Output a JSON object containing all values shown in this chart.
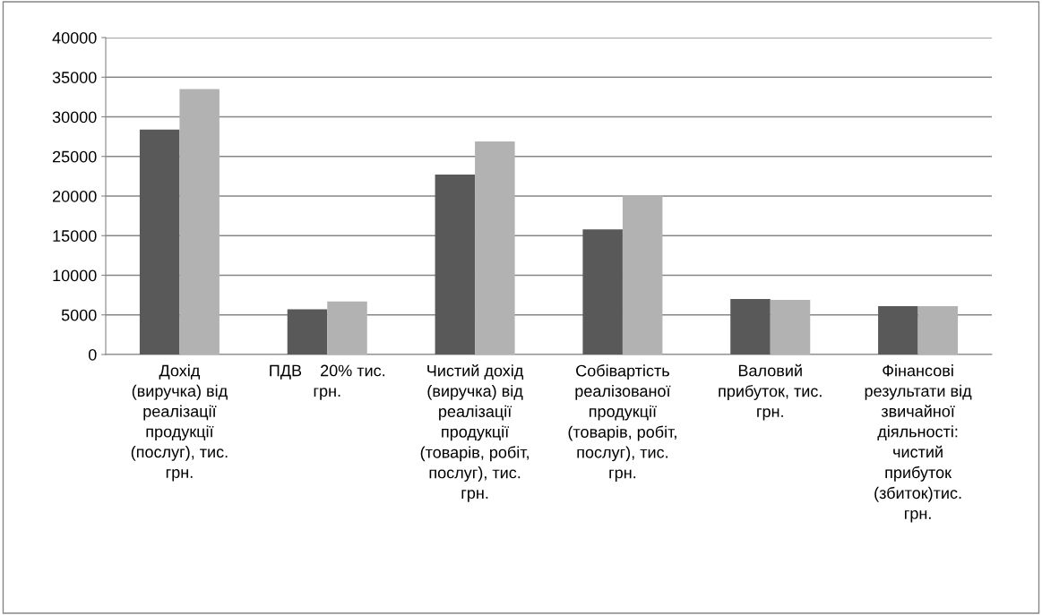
{
  "chart_data": {
    "type": "bar",
    "categories": [
      "Дохід\n(виручка) від\nреалізації\nпродукції\n(послуг), тис.\nгрн.",
      "ПДВ    20% тис.\nгрн.",
      "Чистий дохід\n(виручка) від\nреалізації\nпродукції\n(товарів, робіт,\nпослуг), тис.\nгрн.",
      "Собівартість\nреалізованої\nпродукції\n(товарів, робіт,\nпослуг), тис.\nгрн.",
      "Валовий\nприбуток, тис.\nгрн.",
      "Фінансові\nрезультати від\nзвичайної\nдіяльності:\nчистий\nприбуток\n(збиток)тис.\nгрн."
    ],
    "series": [
      {
        "color": "#595959",
        "values": [
          28400,
          5700,
          22700,
          15800,
          7000,
          6100
        ]
      },
      {
        "color": "#b2b2b2",
        "values": [
          33500,
          6700,
          26900,
          20100,
          6900,
          6100
        ]
      }
    ],
    "ylim": [
      0,
      40000
    ],
    "yticks": [
      0,
      5000,
      10000,
      15000,
      20000,
      25000,
      30000,
      35000,
      40000
    ],
    "grid": "y",
    "legend": false
  }
}
